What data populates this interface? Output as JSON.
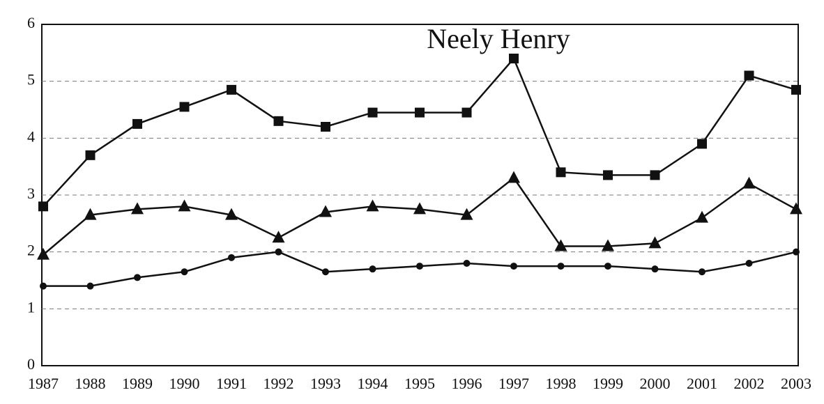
{
  "chart_data": {
    "type": "line",
    "title": "Neely Henry",
    "categories": [
      1987,
      1988,
      1989,
      1990,
      1991,
      1992,
      1993,
      1994,
      1995,
      1996,
      1997,
      1998,
      1999,
      2000,
      2001,
      2002,
      2003
    ],
    "series": [
      {
        "color": "#111111",
        "marker": "square",
        "values": [
          2.8,
          3.7,
          4.25,
          4.55,
          4.85,
          4.3,
          4.2,
          4.45,
          4.45,
          4.45,
          5.4,
          3.4,
          3.35,
          3.35,
          3.9,
          5.1,
          4.85
        ]
      },
      {
        "color": "#111111",
        "marker": "triangle",
        "values": [
          1.95,
          2.65,
          2.75,
          2.8,
          2.65,
          2.25,
          2.7,
          2.8,
          2.75,
          2.65,
          3.3,
          2.1,
          2.1,
          2.15,
          2.6,
          3.2,
          2.75
        ]
      },
      {
        "color": "#111111",
        "marker": "circle",
        "values": [
          1.4,
          1.4,
          1.55,
          1.65,
          1.9,
          2.0,
          1.65,
          1.7,
          1.75,
          1.8,
          1.75,
          1.75,
          1.75,
          1.7,
          1.65,
          1.8,
          2.0
        ]
      }
    ],
    "ylim": [
      0,
      6
    ],
    "yticks": [
      0,
      1,
      2,
      3,
      4,
      5,
      6
    ],
    "grid": true
  }
}
